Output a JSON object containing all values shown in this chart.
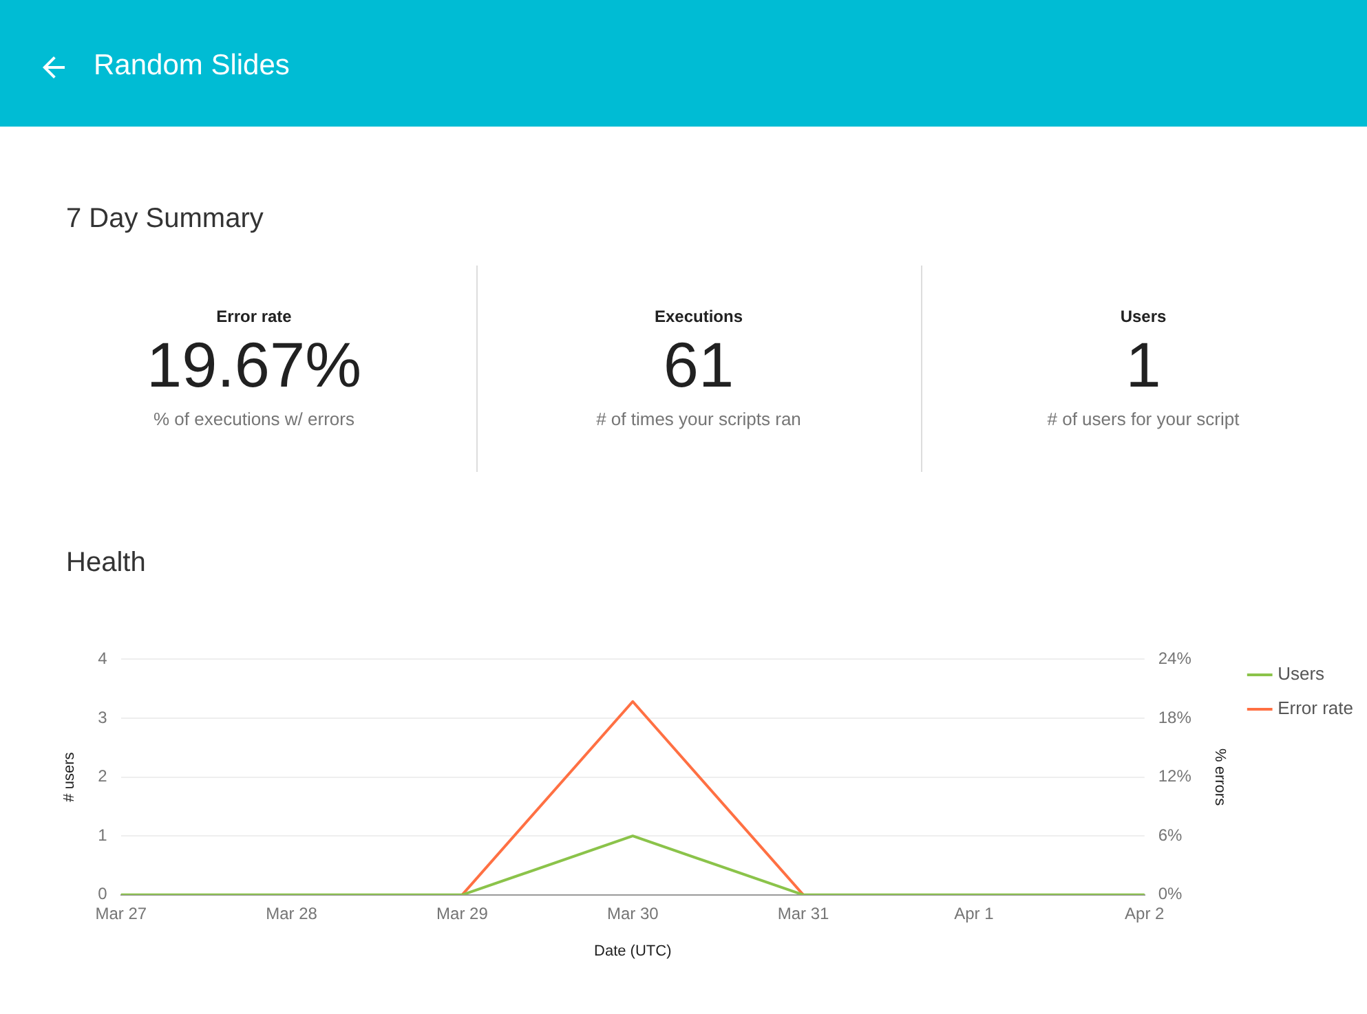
{
  "chart_data": [
    {
      "type": "other",
      "title": "Random Slides",
      "subtitle": "7 Day Summary",
      "categories": [
        "Error rate",
        "Executions",
        "Users"
      ],
      "annotations": [
        "19.67%",
        "% of executions w/ errors",
        "61",
        "# of times your scripts ran",
        "1",
        "# of users for your script"
      ]
    },
    {
      "type": "line",
      "title": "Health",
      "xlabel": "Date (UTC)",
      "ylabel": "# users",
      "y2label": "% errors",
      "categories": [
        "Mar 27",
        "Mar 28",
        "Mar 29",
        "Mar 30",
        "Mar 31",
        "Apr 1",
        "Apr 2"
      ],
      "series": [
        {
          "name": "Users",
          "color": "#8bc34a",
          "values": [
            0,
            0,
            0,
            1,
            0,
            0,
            0
          ]
        },
        {
          "name": "Error rate",
          "color": "#ff7043",
          "axis": "y2",
          "values": [
            null,
            null,
            0,
            19.7,
            0,
            null,
            null
          ]
        }
      ],
      "ylim": [
        0,
        4
      ],
      "yticks": [
        0,
        1,
        2,
        3,
        4
      ],
      "y2lim": [
        0,
        24
      ],
      "y2ticks": [
        {
          "value": 0,
          "label": "0%"
        },
        {
          "value": 6,
          "label": "6%"
        },
        {
          "value": 12,
          "label": "12%"
        },
        {
          "value": 18,
          "label": "18%"
        },
        {
          "value": 24,
          "label": "24%"
        }
      ],
      "grid": "y",
      "legend": "right",
      "marker": "none",
      "line_style": "solid"
    }
  ]
}
